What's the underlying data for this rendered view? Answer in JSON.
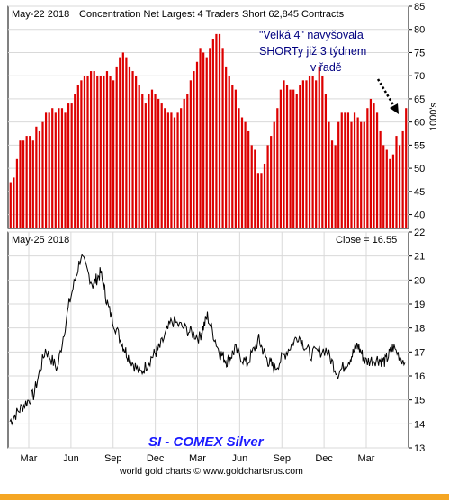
{
  "chart_data": [
    {
      "type": "bar",
      "panel": "top",
      "title": "Concentration Net Largest 4 Traders Short 62,845 Contracts",
      "date_label": "May-22  2018",
      "ylabel": "1000's",
      "ylim": [
        37,
        85
      ],
      "yticks": [
        40,
        45,
        50,
        55,
        60,
        65,
        70,
        75,
        80,
        85
      ],
      "grid": true,
      "colors": {
        "bars": "#dd0000",
        "annotation": "#000080"
      },
      "annotation": [
        "\"Velká 4\" navyšovala",
        "SHORTy již 3 týdnem",
        "v řadě"
      ],
      "values": [
        47,
        48,
        52,
        56,
        56,
        57,
        57,
        56,
        59,
        58,
        60,
        62,
        62,
        63,
        62,
        63,
        63,
        62,
        64,
        64,
        66,
        68,
        69,
        70,
        70,
        71,
        71,
        70,
        70,
        70,
        71,
        70,
        69,
        72,
        74,
        75,
        74,
        72,
        71,
        70,
        68,
        66,
        64,
        66,
        67,
        66,
        65,
        64,
        63,
        62,
        62,
        61,
        62,
        63,
        65,
        66,
        69,
        71,
        73,
        76,
        75,
        74,
        76,
        78,
        79,
        79,
        76,
        72,
        70,
        68,
        67,
        63,
        61,
        60,
        58,
        55,
        54,
        49,
        49,
        51,
        55,
        57,
        60,
        63,
        67,
        69,
        68,
        67,
        67,
        66,
        68,
        69,
        69,
        70,
        70,
        69,
        72,
        70,
        66,
        60,
        56,
        55,
        60,
        62,
        62,
        62,
        60,
        62,
        61,
        60,
        60,
        63,
        65,
        64,
        62,
        58,
        55,
        54,
        52,
        53,
        57,
        55,
        58,
        63
      ]
    },
    {
      "type": "line",
      "panel": "bottom",
      "date_label": "May-25  2018",
      "close_label": "Close = 16.55",
      "ylim": [
        13,
        22
      ],
      "yticks": [
        13,
        14,
        15,
        16,
        17,
        18,
        19,
        20,
        21,
        22
      ],
      "x_months": [
        "Mar",
        "Jun",
        "Sep",
        "Dec",
        "Mar",
        "Jun",
        "Sep",
        "Dec",
        "Mar"
      ],
      "grid": true,
      "legend": "SI  -  COMEX Silver",
      "footer": "world gold charts © www.goldchartsrus.com",
      "x": [
        0,
        0.03,
        0.06,
        0.09,
        0.12,
        0.15,
        0.18,
        0.21,
        0.23,
        0.25,
        0.28,
        0.3,
        0.33,
        0.36,
        0.38,
        0.41,
        0.45,
        0.48,
        0.5,
        0.53,
        0.55,
        0.57,
        0.6,
        0.63,
        0.65,
        0.67,
        0.7,
        0.73,
        0.76,
        0.8,
        0.83,
        0.86,
        0.88,
        0.9,
        0.93,
        0.95,
        0.97,
        1.0
      ],
      "values": [
        14.1,
        14.7,
        15.2,
        17.1,
        16.3,
        19.0,
        21.0,
        19.8,
        20.3,
        18.8,
        17.5,
        16.8,
        16.1,
        16.8,
        17.2,
        18.3,
        17.9,
        17.6,
        18.5,
        17.0,
        16.6,
        17.1,
        16.5,
        17.5,
        16.7,
        16.3,
        17.0,
        17.7,
        16.9,
        17.1,
        16.1,
        16.7,
        17.3,
        16.6,
        16.7,
        16.6,
        17.2,
        16.55
      ]
    }
  ]
}
